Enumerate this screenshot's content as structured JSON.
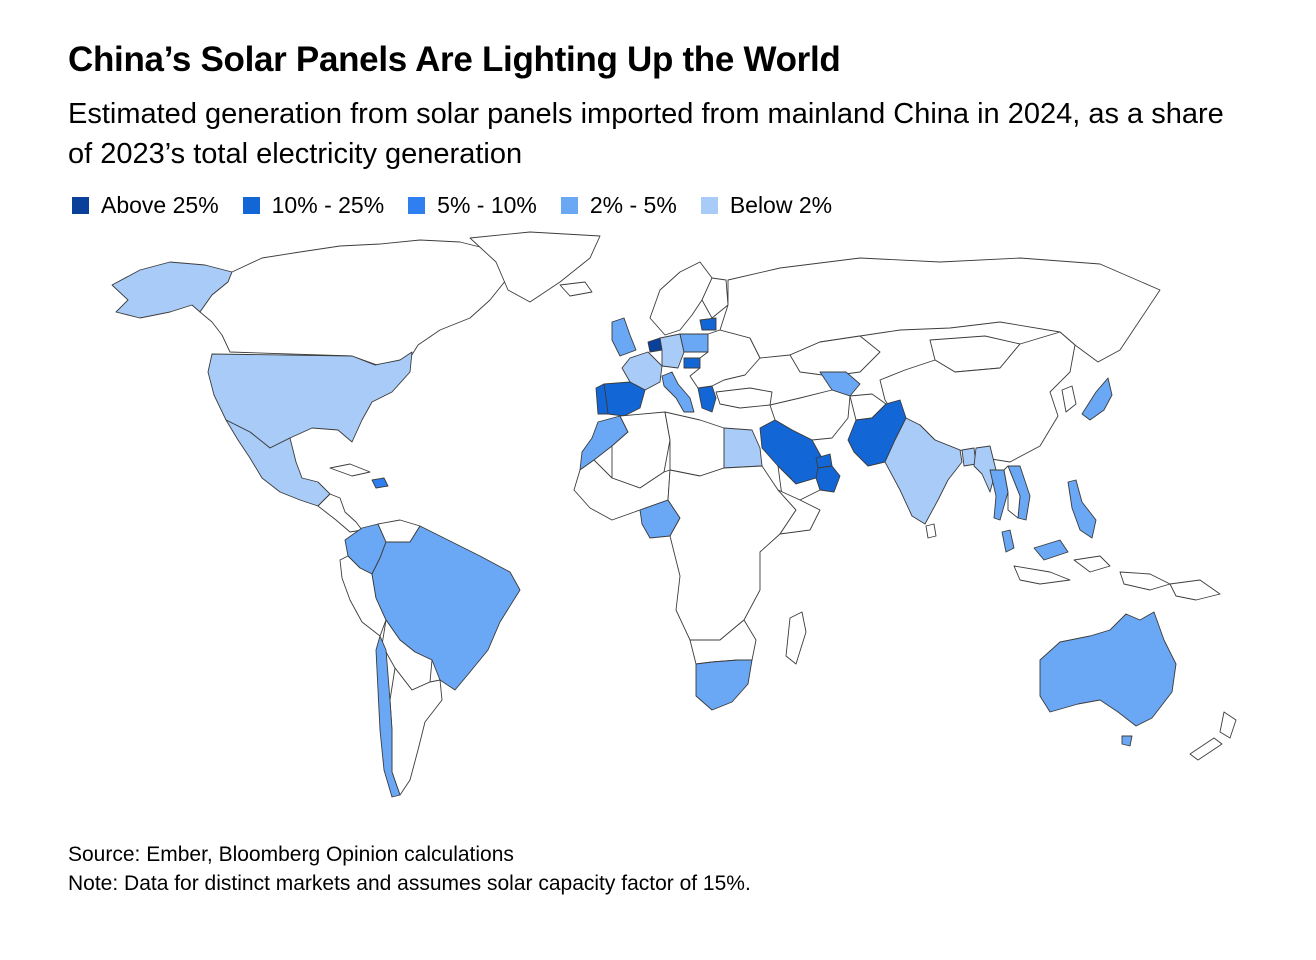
{
  "title": "China’s Solar Panels Are Lighting Up the World",
  "subtitle": "Estimated generation from solar panels imported from mainland China in 2024, as a share of 2023’s total electricity generation",
  "legend": [
    {
      "label": "Above 25%",
      "color": "#0a3f9a"
    },
    {
      "label": "10% - 25%",
      "color": "#1366d6"
    },
    {
      "label": "5% - 10%",
      "color": "#2f7ff1"
    },
    {
      "label": "2% - 5%",
      "color": "#6aa7f4"
    },
    {
      "label": "Below 2%",
      "color": "#a8cbf7"
    }
  ],
  "colors": {
    "no_data": "#ffffff",
    "border": "#3c3c3c"
  },
  "chart_data": {
    "type": "choropleth",
    "title": "China’s Solar Panels Are Lighting Up the World",
    "bins": [
      "Above 25%",
      "10% - 25%",
      "5% - 10%",
      "2% - 5%",
      "Below 2%"
    ],
    "countries": [
      {
        "name": "United States",
        "bin": "Below 2%"
      },
      {
        "name": "Alaska",
        "bin": "Below 2%"
      },
      {
        "name": "Mexico",
        "bin": "Below 2%"
      },
      {
        "name": "Dominican Republic",
        "bin": "5% - 10%"
      },
      {
        "name": "Colombia",
        "bin": "2% - 5%"
      },
      {
        "name": "Brazil",
        "bin": "2% - 5%"
      },
      {
        "name": "Chile",
        "bin": "2% - 5%"
      },
      {
        "name": "Spain",
        "bin": "10% - 25%"
      },
      {
        "name": "Portugal",
        "bin": "10% - 25%"
      },
      {
        "name": "Netherlands",
        "bin": "Above 25%"
      },
      {
        "name": "Greece",
        "bin": "10% - 25%"
      },
      {
        "name": "Hungary",
        "bin": "10% - 25%"
      },
      {
        "name": "Estonia",
        "bin": "10% - 25%"
      },
      {
        "name": "France",
        "bin": "Below 2%"
      },
      {
        "name": "Germany",
        "bin": "Below 2%"
      },
      {
        "name": "United Kingdom",
        "bin": "2% - 5%"
      },
      {
        "name": "Poland",
        "bin": "2% - 5%"
      },
      {
        "name": "Italy",
        "bin": "2% - 5%"
      },
      {
        "name": "Morocco",
        "bin": "2% - 5%"
      },
      {
        "name": "Egypt",
        "bin": "Below 2%"
      },
      {
        "name": "Nigeria",
        "bin": "2% - 5%"
      },
      {
        "name": "South Africa",
        "bin": "2% - 5%"
      },
      {
        "name": "Saudi Arabia",
        "bin": "10% - 25%"
      },
      {
        "name": "United Arab Emirates",
        "bin": "10% - 25%"
      },
      {
        "name": "Oman",
        "bin": "10% - 25%"
      },
      {
        "name": "Pakistan",
        "bin": "10% - 25%"
      },
      {
        "name": "Uzbekistan",
        "bin": "2% - 5%"
      },
      {
        "name": "India",
        "bin": "Below 2%"
      },
      {
        "name": "Bangladesh",
        "bin": "Below 2%"
      },
      {
        "name": "Myanmar",
        "bin": "Below 2%"
      },
      {
        "name": "Thailand",
        "bin": "2% - 5%"
      },
      {
        "name": "Vietnam",
        "bin": "2% - 5%"
      },
      {
        "name": "Philippines",
        "bin": "2% - 5%"
      },
      {
        "name": "Malaysia",
        "bin": "2% - 5%"
      },
      {
        "name": "Japan",
        "bin": "2% - 5%"
      },
      {
        "name": "Australia",
        "bin": "2% - 5%"
      }
    ]
  },
  "footer": {
    "source": "Source: Ember, Bloomberg Opinion calculations",
    "note": "Note: Data for distinct markets and assumes solar capacity factor of 15%."
  }
}
